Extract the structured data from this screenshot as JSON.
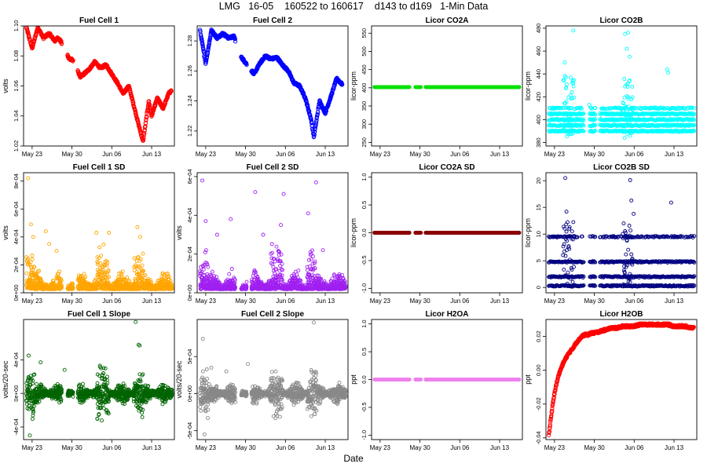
{
  "page": {
    "title": "LMG   16-05    160522 to 160617    d143 to d169   1-Min Data",
    "xlabel": "Date"
  },
  "chart_data": [
    {
      "type": "scatter",
      "title": "Fuel Cell 1",
      "xlabel": "",
      "ylabel": "volts",
      "color": "#ff0000",
      "ylim": [
        1.02,
        1.1
      ],
      "yticks": [
        1.02,
        1.04,
        1.06,
        1.08,
        1.1
      ],
      "ytick_labels": [
        "1.02",
        "1.04",
        "1.06",
        "1.08",
        "1.10"
      ],
      "x_tick_labels": [
        "May 23",
        "May 30",
        "Jun 06",
        "Jun 13"
      ],
      "style": "dense-line",
      "data": {
        "x": [
          143.0,
          144.0,
          145.0,
          146.0,
          147.0,
          148.0,
          148.5,
          149.0,
          150.5,
          151.0,
          152.5,
          154.0,
          155.0,
          156.0,
          157.0,
          158.0,
          159.0,
          160.0,
          161.0,
          162.0,
          163.0,
          163.5,
          164.5,
          165.0,
          166.0,
          167.0,
          168.0,
          168.5
        ],
        "y": [
          1.099,
          1.085,
          1.099,
          1.092,
          1.095,
          1.09,
          1.092,
          1.09,
          1.078,
          1.078,
          1.066,
          1.071,
          1.076,
          1.072,
          1.074,
          1.068,
          1.062,
          1.055,
          1.06,
          1.045,
          1.03,
          1.023,
          1.05,
          1.04,
          1.052,
          1.045,
          1.055,
          1.057
        ]
      }
    },
    {
      "type": "scatter",
      "title": "Fuel Cell 2",
      "xlabel": "",
      "ylabel": "",
      "color": "#0000ff",
      "ylim": [
        1.21,
        1.29
      ],
      "yticks": [
        1.22,
        1.24,
        1.26,
        1.28
      ],
      "ytick_labels": [
        "1.22",
        "1.24",
        "1.26",
        "1.28"
      ],
      "x_tick_labels": [
        "May 23",
        "May 30",
        "Jun 06",
        "Jun 13"
      ],
      "style": "dense-line",
      "data": {
        "x": [
          143.0,
          144.0,
          145.0,
          146.0,
          147.0,
          148.0,
          149.0,
          150.0,
          150.5,
          152.5,
          153.5,
          154.5,
          155.5,
          156.5,
          157.5,
          158.5,
          159.5,
          160.5,
          161.5,
          162.5,
          163.0,
          164.0,
          165.0,
          166.0,
          167.0,
          168.0
        ],
        "y": [
          1.287,
          1.265,
          1.287,
          1.282,
          1.285,
          1.282,
          1.283,
          1.27,
          1.268,
          1.258,
          1.265,
          1.27,
          1.268,
          1.269,
          1.264,
          1.26,
          1.252,
          1.25,
          1.242,
          1.228,
          1.216,
          1.24,
          1.232,
          1.243,
          1.255,
          1.251
        ]
      }
    },
    {
      "type": "scatter",
      "title": "Licor CO2A",
      "xlabel": "",
      "ylabel": "licor-ppm",
      "color": "#00e000",
      "ylim": [
        240,
        570
      ],
      "yticks": [
        250,
        300,
        350,
        400,
        450,
        500,
        550
      ],
      "ytick_labels": [
        "250",
        "300",
        "350",
        "400",
        "450",
        "500",
        "550"
      ],
      "x_tick_labels": [
        "May 23",
        "May 30",
        "Jun 06",
        "Jun 13"
      ],
      "style": "flat-line",
      "data": {
        "x": [
          143.0,
          168.5
        ],
        "y": [
          402,
          402
        ]
      }
    },
    {
      "type": "scatter",
      "title": "Licor CO2B",
      "xlabel": "",
      "ylabel": "licor-ppm",
      "color": "#00ffff",
      "ylim": [
        377,
        482
      ],
      "yticks": [
        380,
        400,
        420,
        440,
        460,
        480
      ],
      "ytick_labels": [
        "380",
        "400",
        "420",
        "440",
        "460",
        "480"
      ],
      "x_tick_labels": [
        "May 23",
        "May 30",
        "Jun 06",
        "Jun 13"
      ],
      "style": "bands",
      "data": {
        "bands": [
          390,
          395,
          400,
          405,
          410
        ],
        "x": [
          145.8,
          146.0,
          147.3,
          150.1,
          156.4,
          156.7,
          156.9,
          157.2,
          163.8,
          164.0
        ],
        "y": [
          450,
          437,
          478,
          413,
          475,
          462,
          476,
          455,
          444,
          441
        ]
      }
    },
    {
      "type": "scatter",
      "title": "Fuel Cell 1 SD",
      "xlabel": "",
      "ylabel": "volts",
      "color": "#ffa500",
      "ylim": [
        0,
        0.00086
      ],
      "yticks": [
        0,
        0.0002,
        0.0004,
        0.0006,
        0.0008
      ],
      "ytick_labels": [
        "0e+00",
        "2e-04",
        "4e-04",
        "6e-04",
        "8e-04"
      ],
      "x_tick_labels": [
        "May 23",
        "May 30",
        "Jun 06",
        "Jun 13"
      ],
      "style": "noise",
      "data": {
        "x": [
          143.3,
          143.8,
          144.2,
          146.4,
          147.0,
          148.3,
          155.3,
          157.5,
          162.5,
          163.0,
          164.8
        ],
        "y": [
          0.00082,
          0.00049,
          0.0004,
          0.00044,
          0.00035,
          0.0003,
          0.00043,
          0.00043,
          0.00047,
          0.0004,
          9e-05
        ]
      }
    },
    {
      "type": "scatter",
      "title": "Fuel Cell 2 SD",
      "xlabel": "",
      "ylabel": "volts",
      "color": "#a020f0",
      "ylim": [
        0,
        0.00062
      ],
      "yticks": [
        0,
        0.0002,
        0.0004,
        0.0006
      ],
      "ytick_labels": [
        "0e+00",
        "2e-04",
        "4e-04",
        "6e-04"
      ],
      "x_tick_labels": [
        "May 23",
        "May 30",
        "Jun 06",
        "Jun 13"
      ],
      "style": "noise",
      "data": {
        "x": [
          143.4,
          144.0,
          146.0,
          148.4,
          152.7,
          154.1,
          157.2,
          157.7,
          162.0,
          163.4,
          164.6
        ],
        "y": [
          0.00058,
          0.00037,
          0.0003,
          0.00038,
          0.00052,
          0.0003,
          0.00035,
          0.00051,
          0.00041,
          0.00057,
          0.00022
        ]
      }
    },
    {
      "type": "scatter",
      "title": "Licor CO2A SD",
      "xlabel": "",
      "ylabel": "licor-ppm",
      "color": "#8b0000",
      "ylim": [
        -1.08,
        1.08
      ],
      "yticks": [
        -1.0,
        -0.5,
        0.0,
        0.5,
        1.0
      ],
      "ytick_labels": [
        "-1.0",
        "-0.5",
        "0.0",
        "0.5",
        "1.0"
      ],
      "x_tick_labels": [
        "May 23",
        "May 30",
        "Jun 06",
        "Jun 13"
      ],
      "style": "flat-line",
      "data": {
        "x": [
          143.0,
          168.5
        ],
        "y": [
          0,
          0
        ]
      }
    },
    {
      "type": "scatter",
      "title": "Licor CO2B SD",
      "xlabel": "",
      "ylabel": "licor-ppm",
      "color": "#000080",
      "ylim": [
        -1.0,
        21.5
      ],
      "yticks": [
        0,
        5,
        10,
        15,
        20
      ],
      "ytick_labels": [
        "0",
        "5",
        "10",
        "15",
        "20"
      ],
      "x_tick_labels": [
        "May 23",
        "May 30",
        "Jun 06",
        "Jun 13"
      ],
      "style": "bands",
      "data": {
        "bands": [
          0.3,
          2.0,
          4.8,
          9.5
        ],
        "x": [
          145.9,
          146.1,
          146.6,
          157.3,
          157.5,
          157.9,
          164.5
        ],
        "y": [
          20.5,
          14.2,
          11.0,
          20.1,
          16.3,
          13.8,
          15.9
        ]
      }
    },
    {
      "type": "scatter",
      "title": "Fuel Cell 1 Slope",
      "xlabel": "",
      "ylabel": "volts/20-sec",
      "color": "#006400",
      "ylim": [
        -0.00055,
        0.00088
      ],
      "yticks": [
        -0.0004,
        0,
        0.0004
      ],
      "ytick_labels": [
        "-4e-04",
        "0e+00",
        "4e-04"
      ],
      "x_tick_labels": [
        "May 23",
        "May 30",
        "Jun 06",
        "Jun 13"
      ],
      "style": "noise-sym",
      "data": {
        "x": [
          143.4,
          145.5,
          149.7,
          162.2,
          162.7,
          162.9,
          143.6
        ],
        "y": [
          0.00045,
          0.00037,
          0.00028,
          0.00085,
          0.00058,
          0.00057,
          -0.0005
        ]
      }
    },
    {
      "type": "scatter",
      "title": "Fuel Cell 2 Slope",
      "xlabel": "",
      "ylabel": "volts/20-sec",
      "color": "#888888",
      "ylim": [
        -0.00062,
        0.001
      ],
      "yticks": [
        -0.0005,
        0,
        0.0005
      ],
      "ytick_labels": [
        "-5e-04",
        "0e+00",
        "5e-04"
      ],
      "x_tick_labels": [
        "May 23",
        "May 30",
        "Jun 06",
        "Jun 13"
      ],
      "style": "noise-sym",
      "data": {
        "x": [
          143.5,
          145.0,
          147.6,
          151.4,
          156.3,
          163.0,
          143.8
        ],
        "y": [
          0.00074,
          0.00035,
          0.0003,
          0.0004,
          0.0003,
          0.00096,
          -0.00055
        ]
      }
    },
    {
      "type": "scatter",
      "title": "Licor H2OA",
      "xlabel": "",
      "ylabel": "ppt",
      "color": "#ee82ee",
      "ylim": [
        -1.08,
        1.08
      ],
      "yticks": [
        -1.0,
        -0.5,
        0.0,
        0.5,
        1.0
      ],
      "ytick_labels": [
        "-1.0",
        "-0.5",
        "0.0",
        "0.5",
        "1.0"
      ],
      "x_tick_labels": [
        "May 23",
        "May 30",
        "Jun 06",
        "Jun 13"
      ],
      "style": "flat-line",
      "data": {
        "x": [
          143.0,
          168.5
        ],
        "y": [
          0,
          0
        ]
      }
    },
    {
      "type": "scatter",
      "title": "Licor H2OB",
      "xlabel": "",
      "ylabel": "ppt",
      "color": "#ff0000",
      "ylim": [
        -0.041,
        0.03
      ],
      "yticks": [
        -0.04,
        -0.02,
        0.0,
        0.02
      ],
      "ytick_labels": [
        "-0.04",
        "-0.02",
        "0.00",
        "0.02"
      ],
      "x_tick_labels": [
        "May 23",
        "May 30",
        "Jun 06",
        "Jun 13"
      ],
      "style": "dense-line",
      "data": {
        "x": [
          143.0,
          143.3,
          143.7,
          144.2,
          144.8,
          145.5,
          146.3,
          147.2,
          148.0,
          148.8,
          149.3,
          150.0,
          150.4,
          151.0,
          152.0,
          153.0,
          154.0,
          155.0,
          156.0,
          157.0,
          158.0,
          159.0,
          160.0,
          161.0,
          162.0,
          163.0,
          164.0,
          165.0,
          166.0,
          167.0,
          168.0,
          168.5
        ],
        "y": [
          -0.0385,
          -0.03,
          -0.02,
          -0.01,
          -0.002,
          0.004,
          0.009,
          0.013,
          0.017,
          0.02,
          0.021,
          0.021,
          0.022,
          0.022,
          0.023,
          0.024,
          0.025,
          0.025,
          0.026,
          0.026,
          0.026,
          0.027,
          0.027,
          0.027,
          0.027,
          0.027,
          0.027,
          0.026,
          0.026,
          0.026,
          0.025,
          0.025
        ]
      }
    }
  ]
}
